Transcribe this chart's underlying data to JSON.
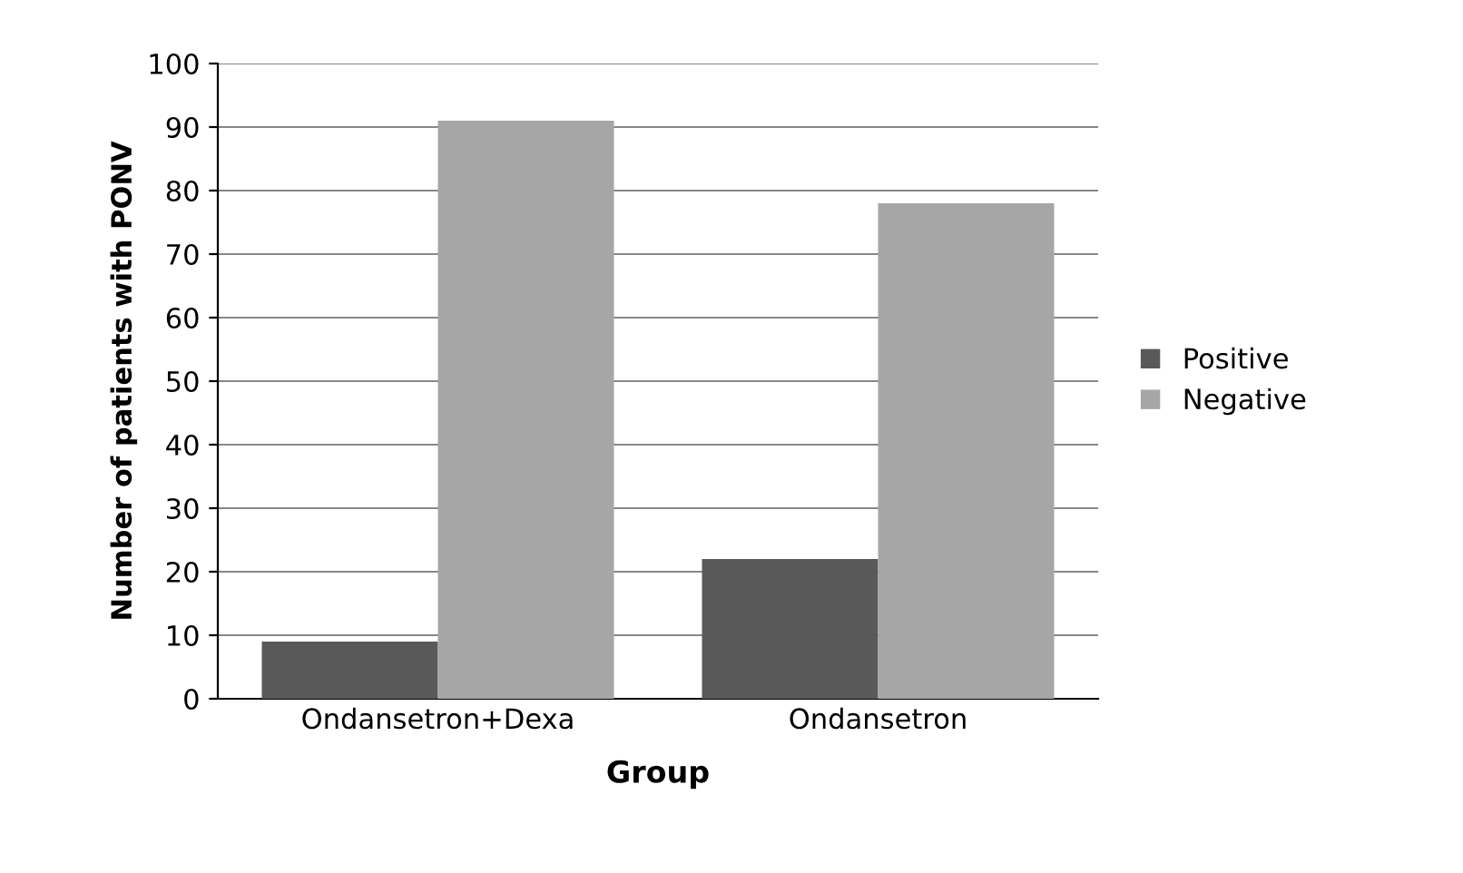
{
  "chart_data": {
    "type": "bar",
    "xlabel": "Group",
    "ylabel": "Number of patients with PONV",
    "categories": [
      "Ondansetron+Dexa",
      "Ondansetron"
    ],
    "series": [
      {
        "name": "Positive",
        "color": "#595959",
        "values": [
          9,
          22
        ]
      },
      {
        "name": "Negative",
        "color": "#a6a6a6",
        "values": [
          91,
          78
        ]
      }
    ],
    "ylim": [
      0,
      100
    ],
    "yticks": [
      0,
      10,
      20,
      30,
      40,
      50,
      60,
      70,
      80,
      90,
      100
    ],
    "grid": "y",
    "legend": "right"
  }
}
